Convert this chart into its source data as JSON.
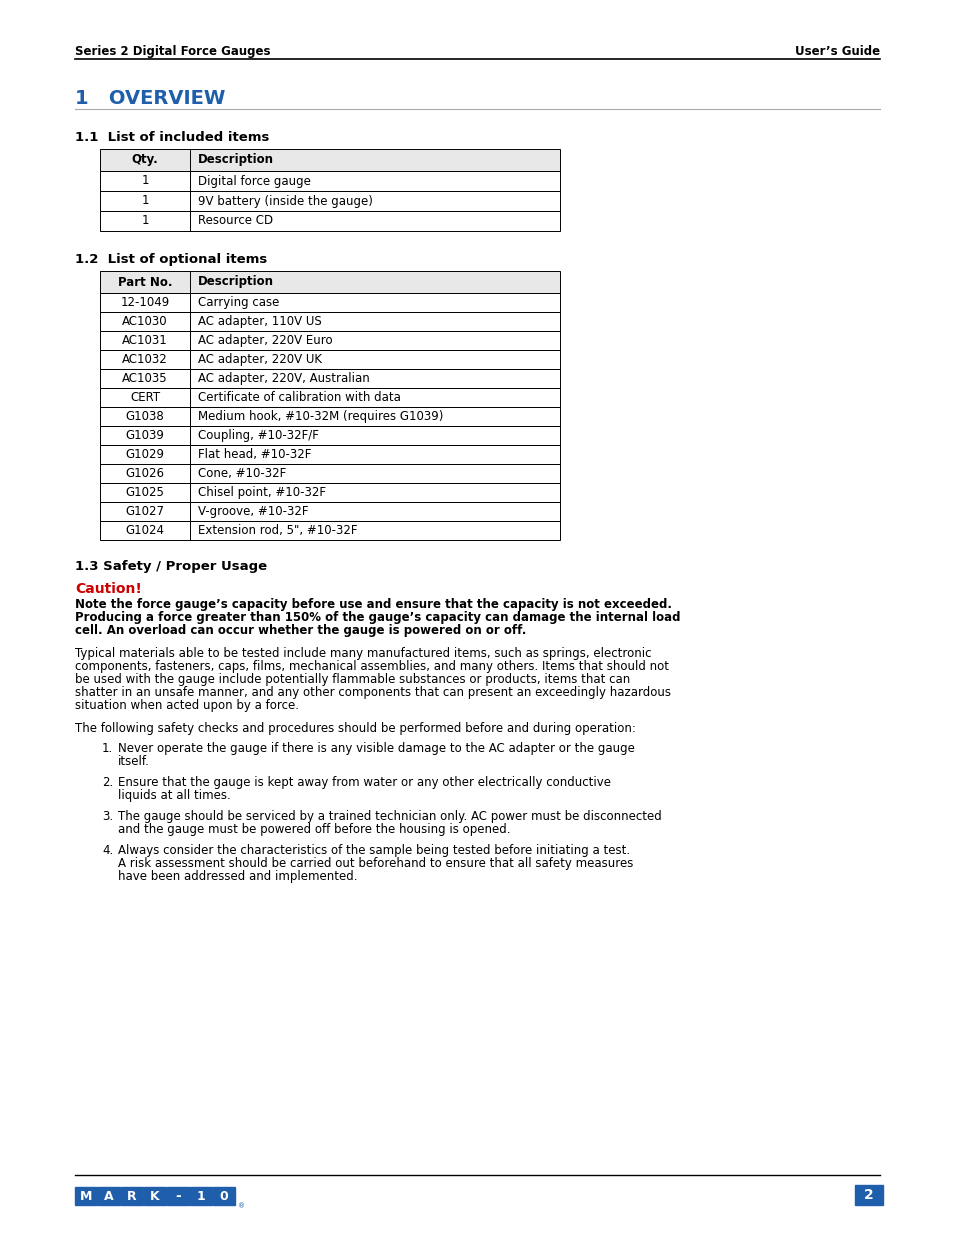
{
  "page_bg": "#ffffff",
  "header_left": "Series 2 Digital Force Gauges",
  "header_right": "User’s Guide",
  "section_title": "1   OVERVIEW",
  "section_title_color": "#1F5EAB",
  "sub1_title": "1.1  List of included items",
  "table1_headers": [
    "Qty.",
    "Description"
  ],
  "table1_rows": [
    [
      "1",
      "Digital force gauge"
    ],
    [
      "1",
      "9V battery (inside the gauge)"
    ],
    [
      "1",
      "Resource CD"
    ]
  ],
  "sub2_title": "1.2  List of optional items",
  "table2_headers": [
    "Part No.",
    "Description"
  ],
  "table2_rows": [
    [
      "12-1049",
      "Carrying case"
    ],
    [
      "AC1030",
      "AC adapter, 110V US"
    ],
    [
      "AC1031",
      "AC adapter, 220V Euro"
    ],
    [
      "AC1032",
      "AC adapter, 220V UK"
    ],
    [
      "AC1035",
      "AC adapter, 220V, Australian"
    ],
    [
      "CERT",
      "Certificate of calibration with data"
    ],
    [
      "G1038",
      "Medium hook, #10-32M (requires G1039)"
    ],
    [
      "G1039",
      "Coupling, #10-32F/F"
    ],
    [
      "G1029",
      "Flat head, #10-32F"
    ],
    [
      "G1026",
      "Cone, #10-32F"
    ],
    [
      "G1025",
      "Chisel point, #10-32F"
    ],
    [
      "G1027",
      "V-groove, #10-32F"
    ],
    [
      "G1024",
      "Extension rod, 5\", #10-32F"
    ]
  ],
  "sub3_title": "1.3 Safety / Proper Usage",
  "caution_title": "Caution!",
  "caution_title_color": "#CC0000",
  "caution_bold_text": "Note the force gauge’s capacity before use and ensure that the capacity is not exceeded. Producing a force greater than 150% of the gauge’s capacity can damage the internal load cell. An overload can occur whether the gauge is powered on or off.",
  "body_text1": "Typical materials able to be tested include many manufactured items, such as springs, electronic components, fasteners, caps, films, mechanical assemblies, and many others. Items that should not be used with the gauge include potentially flammable substances or products, items that can shatter in an unsafe manner, and any other components that can present an exceedingly hazardous situation when acted upon by a force.",
  "body_text2": "The following safety checks and procedures should be performed before and during operation:",
  "numbered_items": [
    "Never operate the gauge if there is any visible damage to the AC adapter or the gauge itself.",
    "Ensure that the gauge is kept away from water or any other electrically conductive liquids at all times.",
    "The gauge should be serviced by a trained technician only. AC power must be disconnected and the gauge must be powered off before the housing is opened.",
    "Always consider the characteristics of the sample being tested before initiating a test. A risk assessment should be carried out beforehand to ensure that all safety measures have been addressed and implemented."
  ],
  "footer_line_color": "#000000",
  "page_number": "2",
  "page_number_bg": "#1F5EAB",
  "mark10_color": "#1F5EAB",
  "font_size_body": 8.5,
  "font_size_header": 8.5,
  "font_size_section": 13,
  "font_size_sub": 9.5,
  "font_size_table": 8.5
}
